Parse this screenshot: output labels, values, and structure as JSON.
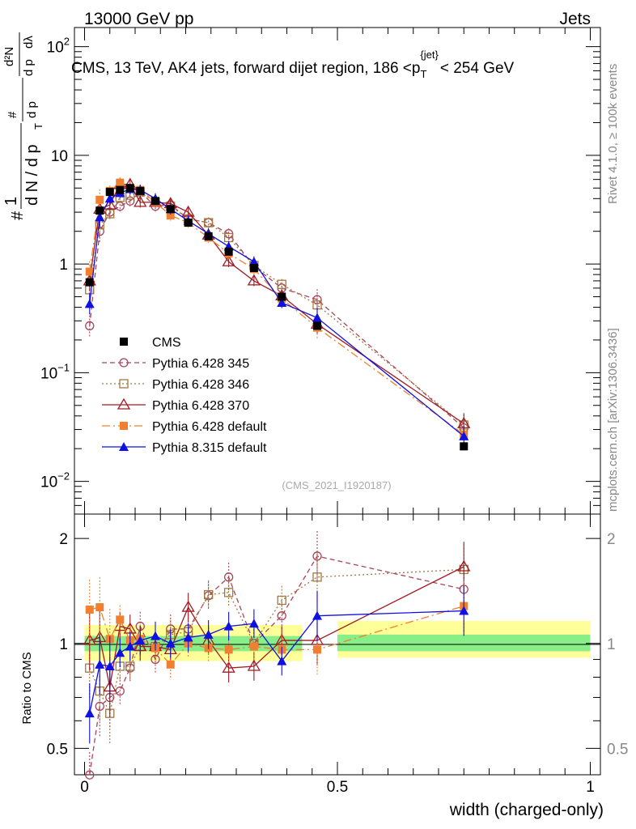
{
  "header": {
    "left": "13000 GeV pp",
    "right": "Jets"
  },
  "side_labels": {
    "rivet": "Rivet 4.1.0, ≥ 100k events",
    "mcplots": "mcplots.cern.ch [arXiv:1306.3436]"
  },
  "colors": {
    "cms": "#000000",
    "p345": "#a8445a",
    "p346": "#a07840",
    "p370": "#a01c24",
    "pdef": "#f08030",
    "p8": "#1010e0"
  },
  "chart_data": [
    {
      "type": "line",
      "log_y": true,
      "title": "CMS, 13 TeV, AK4 jets, forward dijet region, 186 <p",
      "title_sub": "T",
      "title_sup": "{jet}",
      "title_tail": "< 254 GeV",
      "ylabel_tokens": {
        "hash": "#",
        "one": "1",
        "dn": "d N / d p",
        "t": "T",
        "num": "#",
        "dpt": "d p",
        "d2n": "d²N",
        "dpl": "d p",
        "dl": "dλ"
      },
      "ylabel_tail": "d p",
      "yticks": [
        {
          "value": 0.01,
          "base": "10",
          "exp": "−2"
        },
        {
          "value": 0.1,
          "base": "10",
          "exp": "−1"
        },
        {
          "value": 1,
          "base": "1",
          "exp": ""
        },
        {
          "value": 10,
          "base": "10",
          "exp": ""
        },
        {
          "value": 100,
          "base": "10",
          "exp": "2"
        }
      ],
      "ylim": [
        0.005,
        150
      ],
      "xlim": [
        -0.02,
        1.02
      ],
      "watermark": "(CMS_2021_I1920187)",
      "x": [
        0.01,
        0.03,
        0.05,
        0.07,
        0.09,
        0.11,
        0.14,
        0.17,
        0.205,
        0.245,
        0.285,
        0.335,
        0.39,
        0.46,
        0.75
      ],
      "series": [
        {
          "name": "CMS",
          "key": "cms",
          "values": [
            0.68,
            3.1,
            4.6,
            4.8,
            5.0,
            4.7,
            3.8,
            3.2,
            2.4,
            1.8,
            1.3,
            0.92,
            0.5,
            0.27,
            0.021
          ]
        },
        {
          "name": "Pythia 6.428 345",
          "key": "p345",
          "values": [
            0.27,
            2.0,
            3.0,
            3.4,
            3.8,
            4.6,
            3.4,
            3.5,
            2.6,
            2.4,
            1.9,
            0.95,
            0.6,
            0.47,
            0.031
          ]
        },
        {
          "name": "Pythia 6.428 346",
          "key": "p346",
          "values": [
            0.58,
            2.3,
            2.9,
            4.1,
            4.3,
            4.6,
            3.7,
            3.4,
            2.6,
            2.4,
            1.75,
            0.97,
            0.65,
            0.42,
            0.033
          ]
        },
        {
          "name": "Pythia 6.428 370",
          "key": "p370",
          "values": [
            0.7,
            3.2,
            3.5,
            5.4,
            5.4,
            3.7,
            3.7,
            3.6,
            3.0,
            1.85,
            1.05,
            0.7,
            0.51,
            0.28,
            0.034
          ]
        },
        {
          "name": "Pythia 6.428 default",
          "key": "pdef",
          "values": [
            0.85,
            3.9,
            4.7,
            5.6,
            5.0,
            4.8,
            3.7,
            2.8,
            2.4,
            1.75,
            1.25,
            0.9,
            0.48,
            0.26,
            0.027
          ]
        },
        {
          "name": "Pythia 8.315 default",
          "key": "p8",
          "values": [
            0.43,
            2.7,
            4.0,
            4.5,
            4.9,
            4.8,
            4.0,
            3.2,
            2.5,
            1.9,
            1.45,
            1.05,
            0.44,
            0.32,
            0.026
          ]
        }
      ]
    },
    {
      "type": "line",
      "log_y": true,
      "ylabel": "Ratio to CMS",
      "xlabel": "width (charged-only)",
      "xticks": [
        {
          "value": 0,
          "label": "0"
        },
        {
          "value": 0.5,
          "label": "0.5"
        },
        {
          "value": 1,
          "label": "1"
        }
      ],
      "yticks": [
        {
          "value": 0.5,
          "label": "0.5"
        },
        {
          "value": 1,
          "label": "1"
        },
        {
          "value": 2,
          "label": "2"
        }
      ],
      "ylim": [
        0.42,
        2.35
      ],
      "bands": [
        {
          "x0": 0.0,
          "x1": 0.43,
          "yellow": [
            0.89,
            1.13
          ],
          "green": [
            0.95,
            1.05
          ]
        },
        {
          "x0": 0.5,
          "x1": 1.0,
          "yellow": [
            0.91,
            1.16
          ],
          "green": [
            0.95,
            1.06
          ]
        }
      ],
      "series": [
        {
          "key": "p345",
          "values": [
            0.4,
            0.66,
            0.7,
            0.73,
            0.85,
            1.12,
            0.9,
            1.1,
            1.1,
            1.37,
            1.55,
            1.0,
            1.2,
            1.78,
            1.43
          ]
        },
        {
          "key": "p346",
          "values": [
            0.85,
            0.73,
            0.63,
            0.86,
            0.86,
            0.98,
            0.98,
            1.06,
            1.08,
            1.38,
            1.4,
            1.0,
            1.33,
            1.55,
            1.63
          ]
        },
        {
          "key": "p370",
          "values": [
            1.02,
            1.04,
            0.75,
            1.12,
            1.1,
            0.98,
            0.98,
            0.96,
            1.27,
            1.02,
            0.85,
            0.86,
            1.02,
            1.02,
            1.66
          ]
        },
        {
          "key": "pdef",
          "values": [
            1.25,
            1.27,
            1.03,
            1.17,
            1.02,
            1.03,
            0.97,
            0.87,
            1.0,
            0.97,
            0.96,
            0.98,
            0.96,
            0.96,
            1.28
          ]
        },
        {
          "key": "p8",
          "values": [
            0.63,
            0.87,
            0.86,
            0.94,
            0.98,
            1.02,
            1.05,
            1.0,
            1.04,
            1.06,
            1.12,
            1.14,
            0.89,
            1.2,
            1.24
          ]
        }
      ]
    }
  ]
}
